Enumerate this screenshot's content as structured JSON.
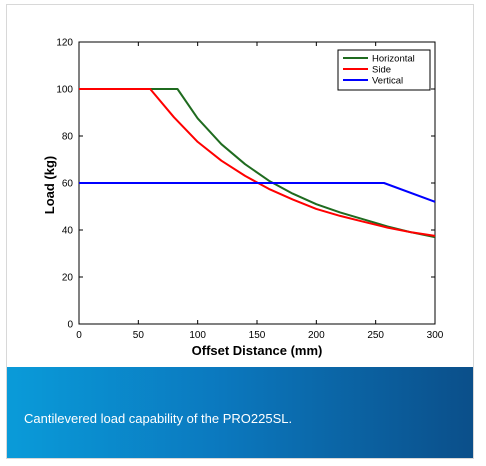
{
  "caption": "Cantilevered load capability of the PRO225SL.",
  "chart_data": {
    "type": "line",
    "title": "",
    "xlabel": "Offset Distance (mm)",
    "ylabel": "Load (kg)",
    "xlim": [
      0,
      300
    ],
    "ylim": [
      0,
      120
    ],
    "xticks": [
      0,
      50,
      100,
      150,
      200,
      250,
      300
    ],
    "yticks": [
      0,
      20,
      40,
      60,
      80,
      100,
      120
    ],
    "grid": false,
    "legend_position": "top-right",
    "series": [
      {
        "name": "Horizontal",
        "color": "#1f6b1f",
        "x": [
          0,
          83,
          100,
          120,
          140,
          160,
          180,
          200,
          220,
          240,
          260,
          280,
          300
        ],
        "y": [
          100,
          100,
          87.5,
          76.5,
          68,
          61,
          55.5,
          51,
          47.5,
          44.5,
          41.5,
          39,
          37
        ]
      },
      {
        "name": "Side",
        "color": "#ff0000",
        "x": [
          0,
          60,
          80,
          100,
          120,
          140,
          160,
          180,
          200,
          220,
          240,
          260,
          280,
          300
        ],
        "y": [
          100,
          100,
          88,
          77.5,
          69.5,
          63,
          57.5,
          53,
          49,
          46,
          43.5,
          41,
          39,
          37.5
        ]
      },
      {
        "name": "Vertical",
        "color": "#0000ff",
        "x": [
          0,
          257,
          300
        ],
        "y": [
          60,
          60,
          52
        ]
      }
    ]
  }
}
